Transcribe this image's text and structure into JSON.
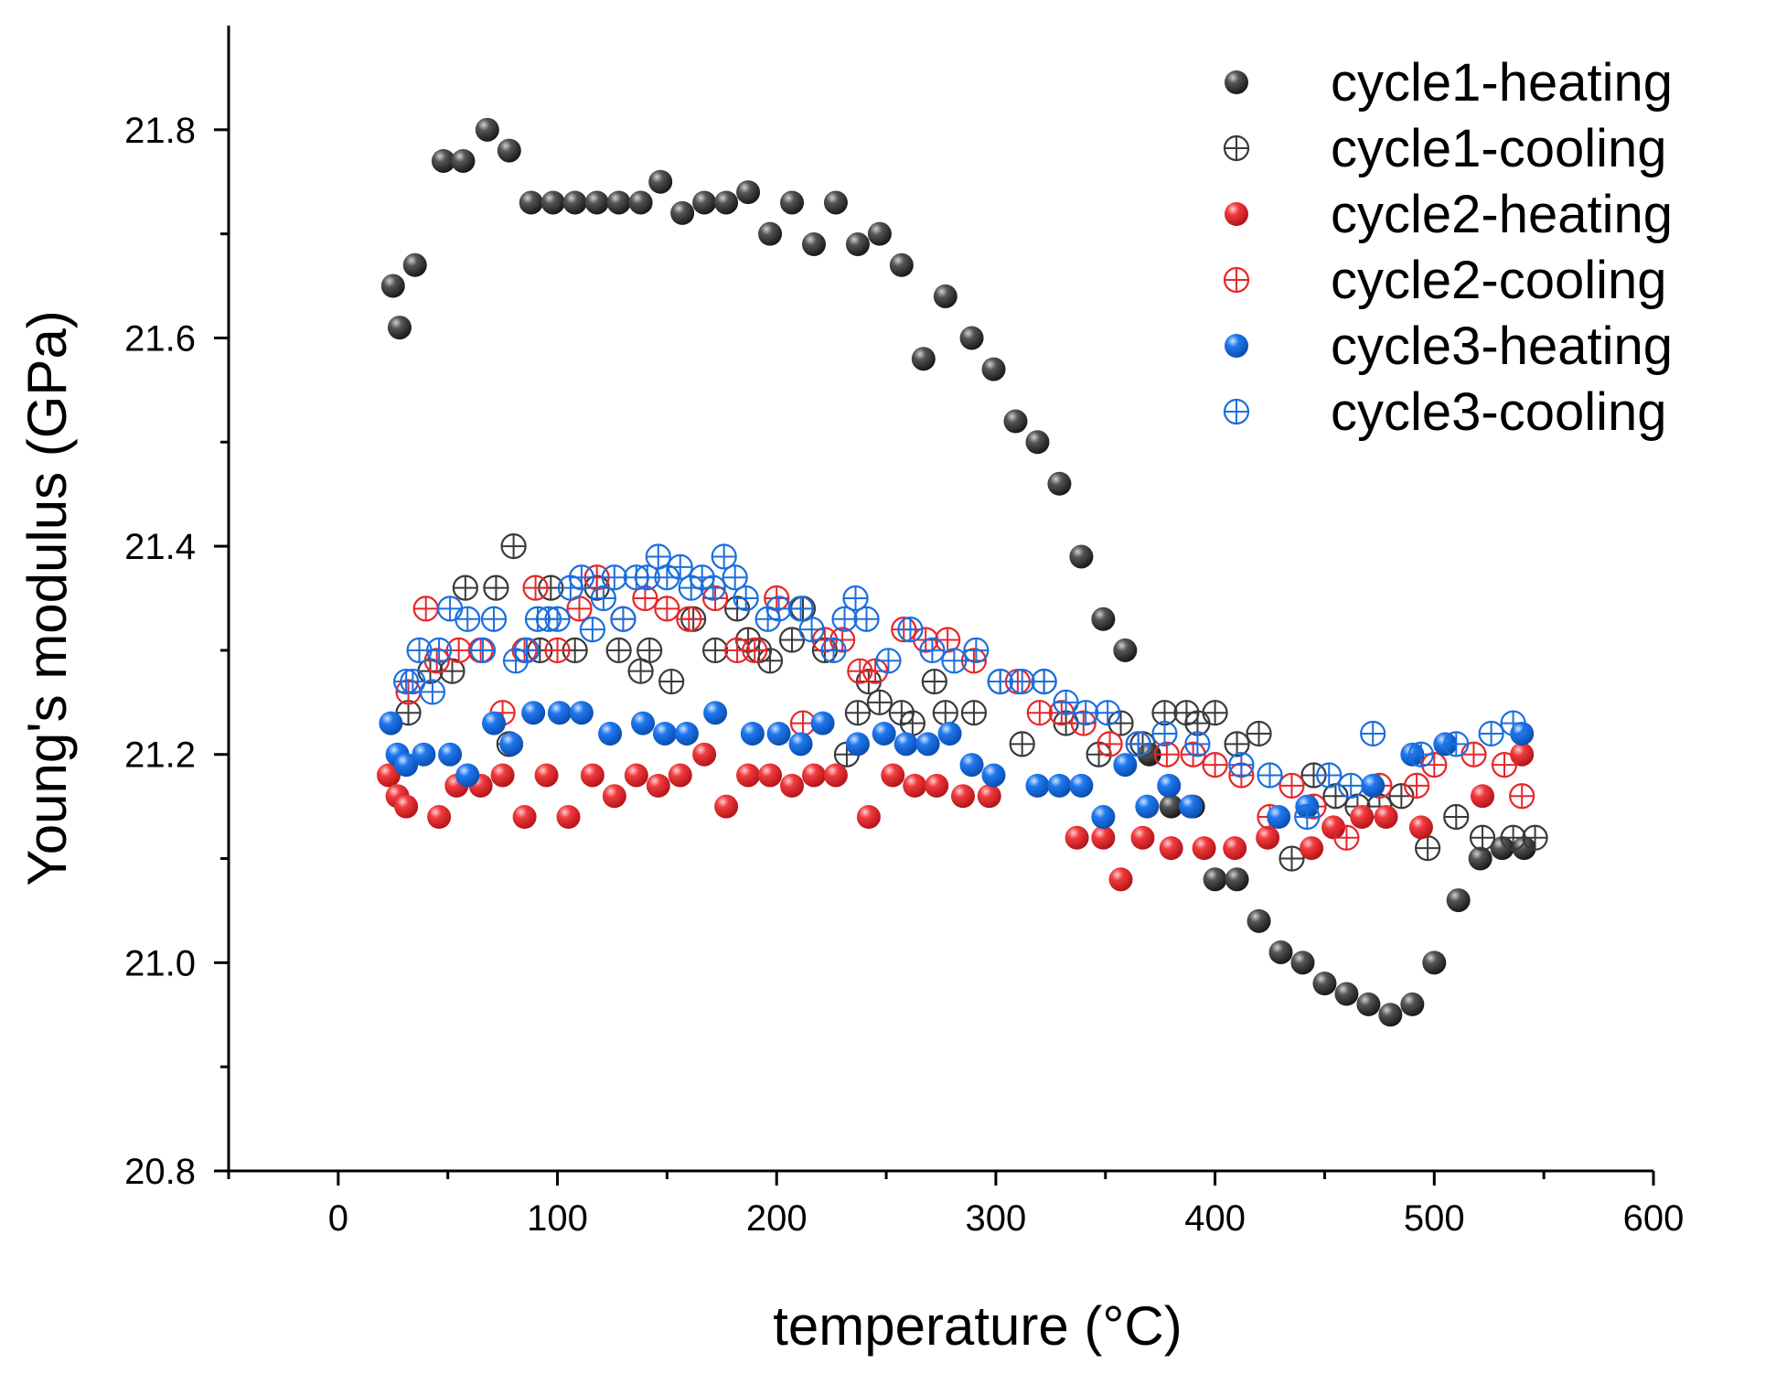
{
  "chart_data": {
    "type": "scatter",
    "xlabel": "temperature (°C)",
    "ylabel": "Young's modulus (GPa)",
    "xlim": [
      -50,
      600
    ],
    "ylim": [
      20.8,
      21.9
    ],
    "xticks": [
      0,
      100,
      200,
      300,
      400,
      500,
      600
    ],
    "xtick_labels": [
      "0",
      "100",
      "200",
      "300",
      "400",
      "500",
      "600"
    ],
    "yticks": [
      20.8,
      21.0,
      21.2,
      21.4,
      21.6,
      21.8
    ],
    "ytick_labels": [
      "20.8",
      "21.0",
      "21.2",
      "21.4",
      "21.6",
      "21.8"
    ],
    "legend_position": "top-right",
    "series": [
      {
        "name": "cycle1-heating",
        "color": "#3a3a3a",
        "marker": "filled",
        "x": [
          25,
          28,
          35,
          48,
          57,
          68,
          78,
          88,
          98,
          108,
          118,
          128,
          138,
          147,
          157,
          167,
          177,
          187,
          197,
          207,
          217,
          227,
          237,
          247,
          257,
          267,
          277,
          289,
          299,
          309,
          319,
          329,
          339,
          349,
          359,
          370,
          380,
          390,
          400,
          410,
          420,
          430,
          440,
          450,
          460,
          470,
          480,
          490,
          500,
          511,
          521,
          531,
          541
        ],
        "y": [
          21.65,
          21.61,
          21.67,
          21.77,
          21.77,
          21.8,
          21.78,
          21.73,
          21.73,
          21.73,
          21.73,
          21.73,
          21.73,
          21.75,
          21.72,
          21.73,
          21.73,
          21.74,
          21.7,
          21.73,
          21.69,
          21.73,
          21.69,
          21.7,
          21.67,
          21.58,
          21.64,
          21.6,
          21.57,
          21.52,
          21.5,
          21.46,
          21.39,
          21.33,
          21.3,
          21.2,
          21.15,
          21.15,
          21.08,
          21.08,
          21.04,
          21.01,
          21.0,
          20.98,
          20.97,
          20.96,
          20.95,
          20.96,
          21.0,
          21.06,
          21.1,
          21.11,
          21.11
        ]
      },
      {
        "name": "cycle1-cooling",
        "color": "#3a3a3a",
        "marker": "crossed",
        "x": [
          32,
          42,
          52,
          58,
          72,
          78,
          80,
          92,
          97,
          108,
          118,
          128,
          138,
          142,
          152,
          162,
          172,
          182,
          187,
          192,
          197,
          207,
          212,
          222,
          232,
          237,
          242,
          247,
          257,
          262,
          272,
          277,
          290,
          302,
          312,
          322,
          332,
          347,
          357,
          367,
          377,
          387,
          392,
          400,
          410,
          420,
          435,
          445,
          455,
          465,
          475,
          485,
          497,
          510,
          522,
          536,
          546
        ],
        "y": [
          21.24,
          21.28,
          21.28,
          21.36,
          21.36,
          21.21,
          21.4,
          21.3,
          21.36,
          21.3,
          21.36,
          21.3,
          21.28,
          21.3,
          21.27,
          21.33,
          21.3,
          21.34,
          21.31,
          21.3,
          21.29,
          21.31,
          21.34,
          21.3,
          21.2,
          21.24,
          21.27,
          21.25,
          21.24,
          21.23,
          21.27,
          21.24,
          21.24,
          21.27,
          21.21,
          21.27,
          21.23,
          21.2,
          21.23,
          21.21,
          21.24,
          21.24,
          21.23,
          21.24,
          21.21,
          21.22,
          21.1,
          21.18,
          21.16,
          21.15,
          21.15,
          21.16,
          21.11,
          21.14,
          21.12,
          21.12,
          21.12
        ]
      },
      {
        "name": "cycle2-heating",
        "color": "#e8262a",
        "marker": "filled",
        "x": [
          23,
          27,
          31,
          46,
          54,
          65,
          75,
          85,
          95,
          105,
          116,
          126,
          136,
          146,
          156,
          167,
          177,
          187,
          197,
          207,
          217,
          227,
          242,
          253,
          263,
          273,
          285,
          297,
          337,
          349,
          357,
          367,
          380,
          395,
          409,
          424,
          444,
          454,
          467,
          478,
          494,
          522,
          540
        ],
        "y": [
          21.18,
          21.16,
          21.15,
          21.14,
          21.17,
          21.17,
          21.18,
          21.14,
          21.18,
          21.14,
          21.18,
          21.16,
          21.18,
          21.17,
          21.18,
          21.2,
          21.15,
          21.18,
          21.18,
          21.17,
          21.18,
          21.18,
          21.14,
          21.18,
          21.17,
          21.17,
          21.16,
          21.16,
          21.12,
          21.12,
          21.08,
          21.12,
          21.11,
          21.11,
          21.11,
          21.12,
          21.11,
          21.13,
          21.14,
          21.14,
          21.13,
          21.16,
          21.2
        ]
      },
      {
        "name": "cycle2-cooling",
        "color": "#e8262a",
        "marker": "crossed",
        "x": [
          32,
          40,
          45,
          55,
          65,
          75,
          85,
          90,
          100,
          110,
          118,
          130,
          140,
          150,
          160,
          172,
          182,
          190,
          200,
          212,
          222,
          230,
          238,
          245,
          258,
          268,
          278,
          290,
          310,
          320,
          330,
          340,
          352,
          365,
          378,
          390,
          400,
          412,
          425,
          435,
          445,
          460,
          475,
          492,
          500,
          518,
          532,
          540
        ],
        "y": [
          21.26,
          21.34,
          21.29,
          21.3,
          21.3,
          21.24,
          21.3,
          21.36,
          21.3,
          21.34,
          21.37,
          21.33,
          21.35,
          21.34,
          21.33,
          21.35,
          21.3,
          21.3,
          21.35,
          21.23,
          21.31,
          21.31,
          21.28,
          21.28,
          21.32,
          21.31,
          21.31,
          21.29,
          21.27,
          21.24,
          21.24,
          21.23,
          21.21,
          21.21,
          21.2,
          21.2,
          21.19,
          21.18,
          21.14,
          21.17,
          21.15,
          21.12,
          21.17,
          21.17,
          21.19,
          21.2,
          21.19,
          21.16
        ]
      },
      {
        "name": "cycle3-heating",
        "color": "#1a6fe0",
        "marker": "filled",
        "x": [
          24,
          27,
          31,
          39,
          51,
          59,
          71,
          79,
          89,
          101,
          111,
          124,
          139,
          149,
          159,
          172,
          189,
          201,
          211,
          221,
          237,
          249,
          259,
          269,
          279,
          289,
          299,
          319,
          329,
          339,
          349,
          359,
          369,
          379,
          389,
          429,
          442,
          472,
          490,
          505,
          540
        ],
        "y": [
          21.23,
          21.2,
          21.19,
          21.2,
          21.2,
          21.18,
          21.23,
          21.21,
          21.24,
          21.24,
          21.24,
          21.22,
          21.23,
          21.22,
          21.22,
          21.24,
          21.22,
          21.22,
          21.21,
          21.23,
          21.21,
          21.22,
          21.21,
          21.21,
          21.22,
          21.19,
          21.18,
          21.17,
          21.17,
          21.17,
          21.14,
          21.19,
          21.15,
          21.17,
          21.15,
          21.14,
          21.15,
          21.17,
          21.2,
          21.21,
          21.22
        ]
      },
      {
        "name": "cycle3-cooling",
        "color": "#1a6fe0",
        "marker": "crossed",
        "x": [
          31,
          34,
          37,
          43,
          46,
          51,
          59,
          66,
          71,
          81,
          86,
          91,
          96,
          100,
          106,
          111,
          116,
          121,
          126,
          130,
          136,
          141,
          146,
          150,
          156,
          161,
          166,
          171,
          176,
          181,
          186,
          196,
          201,
          211,
          216,
          226,
          231,
          236,
          241,
          251,
          261,
          271,
          281,
          291,
          302,
          312,
          322,
          332,
          341,
          351,
          365,
          377,
          392,
          412,
          425,
          442,
          452,
          462,
          472,
          494,
          510,
          526,
          536
        ],
        "y": [
          21.27,
          21.27,
          21.3,
          21.26,
          21.3,
          21.34,
          21.33,
          21.3,
          21.33,
          21.29,
          21.3,
          21.33,
          21.33,
          21.33,
          21.36,
          21.37,
          21.32,
          21.35,
          21.37,
          21.33,
          21.37,
          21.37,
          21.39,
          21.37,
          21.38,
          21.36,
          21.37,
          21.36,
          21.39,
          21.37,
          21.35,
          21.33,
          21.34,
          21.34,
          21.32,
          21.3,
          21.33,
          21.35,
          21.33,
          21.29,
          21.32,
          21.3,
          21.29,
          21.3,
          21.27,
          21.27,
          21.27,
          21.25,
          21.24,
          21.24,
          21.21,
          21.22,
          21.21,
          21.19,
          21.18,
          21.14,
          21.18,
          21.17,
          21.22,
          21.2,
          21.21,
          21.22,
          21.23
        ]
      }
    ]
  }
}
